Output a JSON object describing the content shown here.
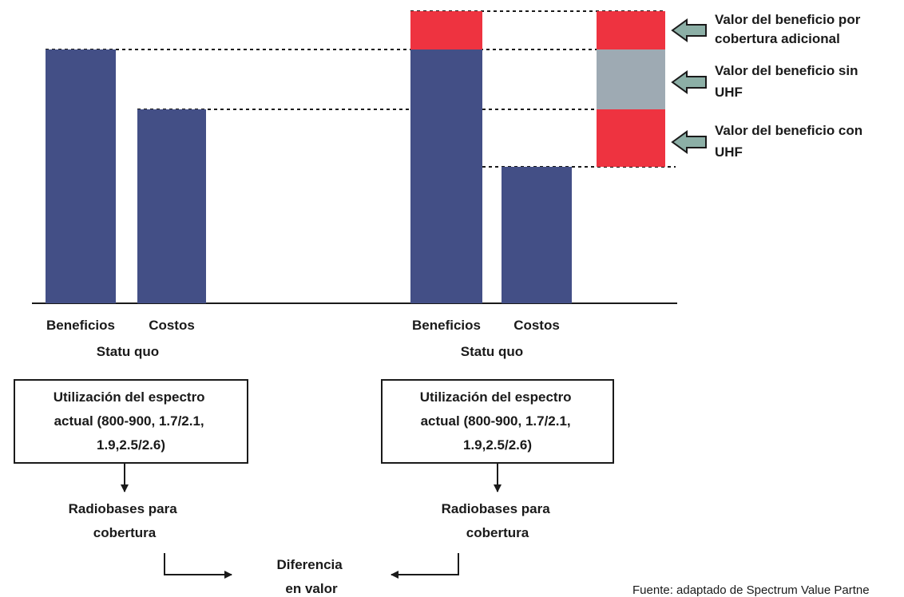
{
  "colors": {
    "bar_blue": "#434f86",
    "bar_red": "#ee3340",
    "bar_gray": "#9eaab3",
    "arrow_fill": "#8cafa6",
    "line": "#1a1a1a"
  },
  "left_group": {
    "benefits_label": "Beneficios",
    "costs_label": "Costos",
    "scenario_label": "Statu quo",
    "box_lines": [
      "Utilización del espectro",
      "actual (800-900, 1.7/2.1,",
      "1.9,2.5/2.6)"
    ],
    "radio_lines": [
      "Radiobases para",
      "cobertura"
    ]
  },
  "right_group": {
    "benefits_label": "Beneficios",
    "costs_label": "Costos",
    "scenario_label": "Statu quo",
    "box_lines": [
      "Utilización del espectro",
      "actual (800-900, 1.7/2.1,",
      "1.9,2.5/2.6)"
    ],
    "radio_lines": [
      "Radiobases para",
      "cobertura"
    ]
  },
  "legend": [
    {
      "lines": [
        "Valor del beneficio por",
        "cobertura adicional"
      ],
      "color_key": "bar_red"
    },
    {
      "lines": [
        "Valor del beneficio sin",
        "UHF"
      ],
      "color_key": "bar_gray"
    },
    {
      "lines": [
        "Valor del beneficio con",
        "UHF"
      ],
      "color_key": "bar_red"
    }
  ],
  "center": {
    "lines": [
      "Diferencia",
      "en valor"
    ]
  },
  "source_text": "Fuente: adaptado de Spectrum Value Partne"
}
